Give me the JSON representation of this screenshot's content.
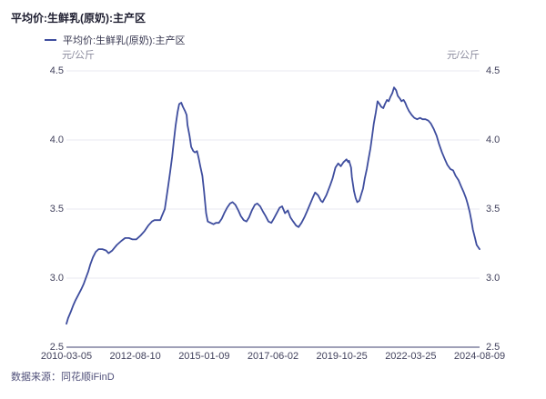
{
  "page": {
    "title": "平均价:生鲜乳(原奶):主产区",
    "source": "数据来源：同花顺iFinD"
  },
  "chart_data": {
    "type": "line",
    "title": "平均价:生鲜乳(原奶):主产区",
    "legend": [
      {
        "name": "平均价:生鲜乳(原奶):主产区",
        "color": "#3e4d9e"
      }
    ],
    "legend_position": "top-left",
    "unit_left": "元/公斤",
    "unit_right": "元/公斤",
    "ylabel": "元/公斤",
    "ylim": [
      2.5,
      4.5
    ],
    "y_ticks": [
      2.5,
      3.0,
      3.5,
      4.0,
      4.5
    ],
    "x_tick_labels": [
      "2010-03-05",
      "2012-08-10",
      "2015-01-09",
      "2017-06-02",
      "2019-10-25",
      "2022-03-25",
      "2024-08-09"
    ],
    "grid": "horizontal",
    "colors": {
      "line": "#3e4d9e",
      "grid": "#eaeaf2",
      "axis": "#9fa0b7",
      "tick_text": "#41415c",
      "unit_text": "#8c8c9e",
      "title_text": "#1e1e30",
      "source_text": "#50507a"
    },
    "series": [
      {
        "name": "平均价:生鲜乳(原奶):主产区",
        "color": "#3e4d9e",
        "points": [
          [
            0.0,
            2.67
          ],
          [
            0.004,
            2.71
          ],
          [
            0.011,
            2.76
          ],
          [
            0.016,
            2.8
          ],
          [
            0.022,
            2.84
          ],
          [
            0.029,
            2.88
          ],
          [
            0.036,
            2.92
          ],
          [
            0.042,
            2.96
          ],
          [
            0.047,
            3.0
          ],
          [
            0.053,
            3.05
          ],
          [
            0.058,
            3.1
          ],
          [
            0.064,
            3.15
          ],
          [
            0.071,
            3.19
          ],
          [
            0.078,
            3.21
          ],
          [
            0.087,
            3.21
          ],
          [
            0.096,
            3.2
          ],
          [
            0.102,
            3.18
          ],
          [
            0.111,
            3.2
          ],
          [
            0.122,
            3.24
          ],
          [
            0.133,
            3.27
          ],
          [
            0.142,
            3.29
          ],
          [
            0.151,
            3.29
          ],
          [
            0.16,
            3.28
          ],
          [
            0.169,
            3.28
          ],
          [
            0.18,
            3.31
          ],
          [
            0.189,
            3.34
          ],
          [
            0.198,
            3.38
          ],
          [
            0.207,
            3.41
          ],
          [
            0.213,
            3.42
          ],
          [
            0.22,
            3.42
          ],
          [
            0.227,
            3.42
          ],
          [
            0.231,
            3.45
          ],
          [
            0.238,
            3.5
          ],
          [
            0.242,
            3.58
          ],
          [
            0.247,
            3.68
          ],
          [
            0.251,
            3.77
          ],
          [
            0.256,
            3.88
          ],
          [
            0.26,
            3.99
          ],
          [
            0.264,
            4.1
          ],
          [
            0.269,
            4.2
          ],
          [
            0.273,
            4.26
          ],
          [
            0.278,
            4.27
          ],
          [
            0.282,
            4.24
          ],
          [
            0.287,
            4.21
          ],
          [
            0.291,
            4.18
          ],
          [
            0.293,
            4.11
          ],
          [
            0.298,
            4.03
          ],
          [
            0.302,
            3.95
          ],
          [
            0.307,
            3.92
          ],
          [
            0.311,
            3.91
          ],
          [
            0.316,
            3.92
          ],
          [
            0.32,
            3.87
          ],
          [
            0.324,
            3.81
          ],
          [
            0.329,
            3.74
          ],
          [
            0.333,
            3.63
          ],
          [
            0.336,
            3.54
          ],
          [
            0.338,
            3.47
          ],
          [
            0.342,
            3.41
          ],
          [
            0.349,
            3.4
          ],
          [
            0.356,
            3.39
          ],
          [
            0.362,
            3.4
          ],
          [
            0.369,
            3.4
          ],
          [
            0.376,
            3.43
          ],
          [
            0.382,
            3.47
          ],
          [
            0.389,
            3.51
          ],
          [
            0.396,
            3.54
          ],
          [
            0.402,
            3.55
          ],
          [
            0.409,
            3.53
          ],
          [
            0.416,
            3.49
          ],
          [
            0.422,
            3.45
          ],
          [
            0.429,
            3.42
          ],
          [
            0.436,
            3.41
          ],
          [
            0.442,
            3.44
          ],
          [
            0.449,
            3.49
          ],
          [
            0.456,
            3.53
          ],
          [
            0.462,
            3.54
          ],
          [
            0.469,
            3.52
          ],
          [
            0.476,
            3.48
          ],
          [
            0.482,
            3.45
          ],
          [
            0.489,
            3.41
          ],
          [
            0.496,
            3.4
          ],
          [
            0.502,
            3.43
          ],
          [
            0.509,
            3.47
          ],
          [
            0.516,
            3.51
          ],
          [
            0.522,
            3.52
          ],
          [
            0.529,
            3.47
          ],
          [
            0.536,
            3.49
          ],
          [
            0.542,
            3.44
          ],
          [
            0.549,
            3.41
          ],
          [
            0.556,
            3.38
          ],
          [
            0.562,
            3.37
          ],
          [
            0.569,
            3.4
          ],
          [
            0.576,
            3.44
          ],
          [
            0.582,
            3.48
          ],
          [
            0.589,
            3.53
          ],
          [
            0.596,
            3.58
          ],
          [
            0.602,
            3.62
          ],
          [
            0.609,
            3.6
          ],
          [
            0.616,
            3.56
          ],
          [
            0.62,
            3.55
          ],
          [
            0.629,
            3.6
          ],
          [
            0.638,
            3.67
          ],
          [
            0.644,
            3.72
          ],
          [
            0.651,
            3.8
          ],
          [
            0.658,
            3.83
          ],
          [
            0.664,
            3.81
          ],
          [
            0.671,
            3.84
          ],
          [
            0.678,
            3.86
          ],
          [
            0.682,
            3.84
          ],
          [
            0.684,
            3.85
          ],
          [
            0.689,
            3.8
          ],
          [
            0.691,
            3.73
          ],
          [
            0.696,
            3.63
          ],
          [
            0.7,
            3.58
          ],
          [
            0.704,
            3.55
          ],
          [
            0.709,
            3.56
          ],
          [
            0.713,
            3.6
          ],
          [
            0.718,
            3.65
          ],
          [
            0.722,
            3.72
          ],
          [
            0.727,
            3.79
          ],
          [
            0.731,
            3.86
          ],
          [
            0.736,
            3.94
          ],
          [
            0.74,
            4.03
          ],
          [
            0.744,
            4.12
          ],
          [
            0.749,
            4.2
          ],
          [
            0.753,
            4.28
          ],
          [
            0.758,
            4.26
          ],
          [
            0.762,
            4.24
          ],
          [
            0.767,
            4.23
          ],
          [
            0.771,
            4.26
          ],
          [
            0.776,
            4.29
          ],
          [
            0.78,
            4.28
          ],
          [
            0.784,
            4.31
          ],
          [
            0.789,
            4.34
          ],
          [
            0.793,
            4.38
          ],
          [
            0.798,
            4.36
          ],
          [
            0.802,
            4.32
          ],
          [
            0.807,
            4.3
          ],
          [
            0.811,
            4.28
          ],
          [
            0.816,
            4.29
          ],
          [
            0.82,
            4.27
          ],
          [
            0.824,
            4.24
          ],
          [
            0.829,
            4.21
          ],
          [
            0.836,
            4.18
          ],
          [
            0.842,
            4.16
          ],
          [
            0.849,
            4.15
          ],
          [
            0.856,
            4.16
          ],
          [
            0.862,
            4.15
          ],
          [
            0.869,
            4.15
          ],
          [
            0.876,
            4.14
          ],
          [
            0.882,
            4.12
          ],
          [
            0.889,
            4.08
          ],
          [
            0.896,
            4.03
          ],
          [
            0.902,
            3.97
          ],
          [
            0.909,
            3.91
          ],
          [
            0.916,
            3.86
          ],
          [
            0.922,
            3.82
          ],
          [
            0.929,
            3.79
          ],
          [
            0.936,
            3.78
          ],
          [
            0.942,
            3.74
          ],
          [
            0.949,
            3.71
          ],
          [
            0.956,
            3.66
          ],
          [
            0.962,
            3.62
          ],
          [
            0.967,
            3.58
          ],
          [
            0.971,
            3.54
          ],
          [
            0.976,
            3.48
          ],
          [
            0.98,
            3.42
          ],
          [
            0.984,
            3.35
          ],
          [
            0.989,
            3.29
          ],
          [
            0.993,
            3.24
          ],
          [
            1.0,
            3.21
          ]
        ]
      }
    ]
  }
}
